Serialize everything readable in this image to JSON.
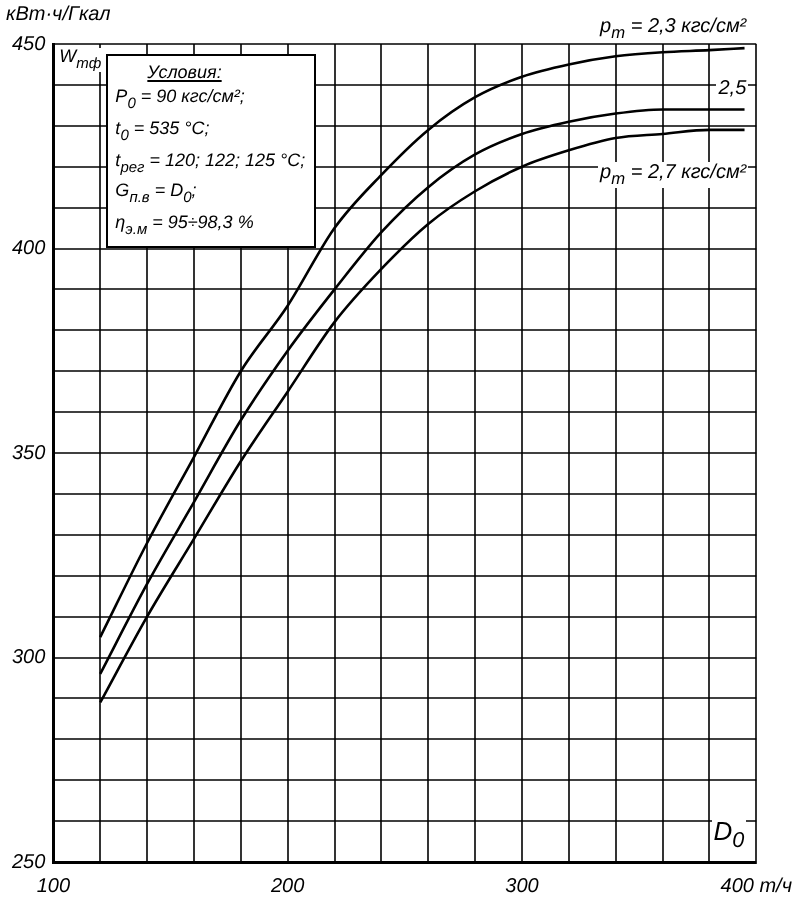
{
  "chart_data": {
    "type": "line",
    "ylabel": "кВт·ч/Гкал",
    "xlabel": "D$_{0}$",
    "annotations": [
      "W$_{тф}$",
      "Условия:",
      "P$_{0}$ = 90 кгс/см²;",
      "t$_{0}$ = 535 °C;",
      "t$_{рег}$ = 120; 122; 125 °C;",
      "G$_{п.в}$ = D$_{0}$;",
      "η$_{э.м}$ = 95÷98,3 %"
    ],
    "x": [
      120,
      140,
      160,
      180,
      200,
      220,
      240,
      260,
      280,
      300,
      320,
      340,
      360,
      380,
      395
    ],
    "series": [
      {
        "name": "p$_{т}$ = 2,3 кгс/см²",
        "color": "#000000",
        "values": [
          305,
          328,
          349,
          370,
          386,
          405,
          418,
          429,
          437,
          442,
          445,
          447,
          448,
          448.5,
          449
        ]
      },
      {
        "name": "2,5",
        "color": "#000000",
        "values": [
          296,
          318,
          338,
          358,
          375,
          390,
          404,
          415,
          423,
          428,
          431,
          433,
          434,
          434,
          434
        ]
      },
      {
        "name": "p$_{т}$ = 2,7 кгс/см²",
        "color": "#000000",
        "values": [
          289,
          310,
          329,
          348,
          365,
          382,
          395,
          406,
          414,
          420,
          424,
          427,
          428,
          429,
          429
        ]
      }
    ],
    "xlim": [
      100,
      400
    ],
    "ylim": [
      250,
      450
    ],
    "xticks": [
      100,
      {
        "value": 120,
        "label": null
      },
      {
        "value": 140,
        "label": null
      },
      {
        "value": 160,
        "label": null
      },
      {
        "value": 180,
        "label": null
      },
      200,
      {
        "value": 220,
        "label": null
      },
      {
        "value": 240,
        "label": null
      },
      {
        "value": 260,
        "label": null
      },
      {
        "value": 280,
        "label": null
      },
      300,
      {
        "value": 320,
        "label": null
      },
      {
        "value": 340,
        "label": null
      },
      {
        "value": 360,
        "label": null
      },
      {
        "value": 380,
        "label": null
      },
      {
        "value": 400,
        "label": "400 т/ч"
      }
    ],
    "yticks": [
      250,
      {
        "value": 260,
        "label": null
      },
      {
        "value": 270,
        "label": null
      },
      {
        "value": 280,
        "label": null
      },
      {
        "value": 290,
        "label": null
      },
      300,
      {
        "value": 310,
        "label": null
      },
      {
        "value": 320,
        "label": null
      },
      {
        "value": 330,
        "label": null
      },
      {
        "value": 340,
        "label": null
      },
      350,
      {
        "value": 360,
        "label": null
      },
      {
        "value": 370,
        "label": null
      },
      {
        "value": 380,
        "label": null
      },
      {
        "value": 390,
        "label": null
      },
      400,
      {
        "value": 410,
        "label": null
      },
      {
        "value": 420,
        "label": null
      },
      {
        "value": 430,
        "label": null
      },
      {
        "value": 440,
        "label": null
      },
      450
    ],
    "grid": true,
    "legend": false,
    "marker": "none",
    "line_style": "solid"
  }
}
